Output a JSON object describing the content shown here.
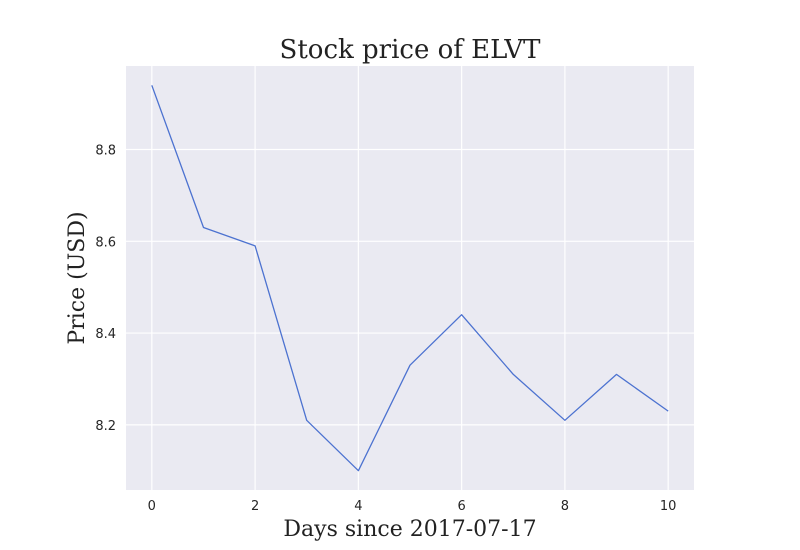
{
  "chart_data": {
    "type": "line",
    "title": "Stock price of ELVT",
    "xlabel": "Days since 2017-07-17",
    "ylabel": "Price (USD)",
    "x": [
      0,
      1,
      2,
      3,
      4,
      5,
      6,
      7,
      8,
      9,
      10
    ],
    "series": [
      {
        "values": [
          8.94,
          8.63,
          8.59,
          8.21,
          8.1,
          8.33,
          8.44,
          8.31,
          8.21,
          8.31,
          8.23
        ]
      }
    ],
    "xlim": [
      -0.5,
      10.5
    ],
    "ylim": [
      8.058,
      8.982
    ],
    "xticks": [
      0,
      2,
      4,
      6,
      8,
      10
    ],
    "xtick_labels": [
      "0",
      "2",
      "4",
      "6",
      "8",
      "10"
    ],
    "yticks": [
      8.2,
      8.4,
      8.6,
      8.8
    ],
    "ytick_labels": [
      "8.2",
      "8.4",
      "8.6",
      "8.8"
    ],
    "grid": true,
    "colors": {
      "background": "#eaeaf2",
      "line": "#4c72d0",
      "grid": "#ffffff"
    }
  }
}
